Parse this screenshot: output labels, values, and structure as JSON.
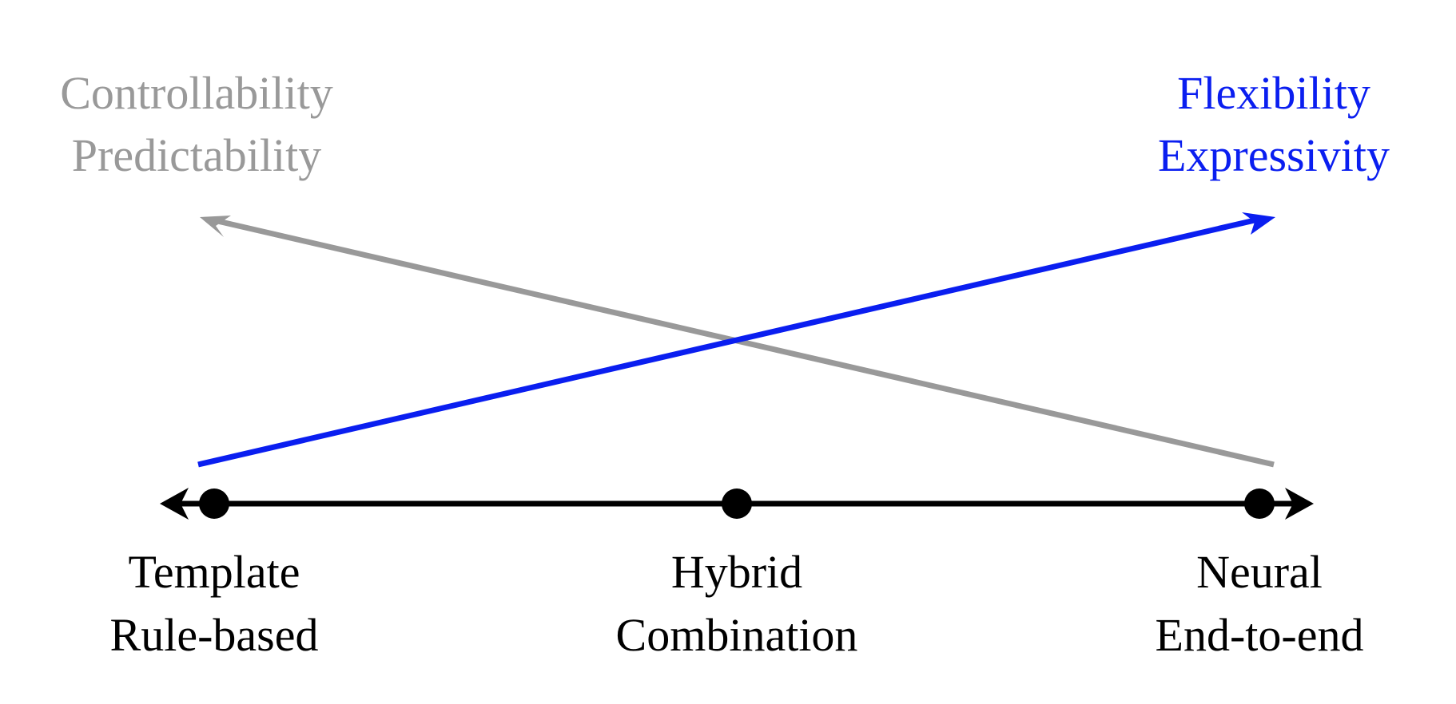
{
  "colors": {
    "background": "#ffffff",
    "axis": "#000000",
    "controllability_arrow": "#999999",
    "flexibility_arrow": "#0a1ef0",
    "controllability_text": "#999999",
    "flexibility_text": "#0a1ef0",
    "point_labels": "#000000"
  },
  "top_left_label": {
    "line1": "Controllability",
    "line2": "Predictability"
  },
  "top_right_label": {
    "line1": "Flexibility",
    "line2": "Expressivity"
  },
  "spectrum": {
    "points": [
      {
        "line1": "Template",
        "line2": "Rule-based"
      },
      {
        "line1": "Hybrid",
        "line2": "Combination"
      },
      {
        "line1": "Neural",
        "line2": "End-to-end"
      }
    ]
  }
}
